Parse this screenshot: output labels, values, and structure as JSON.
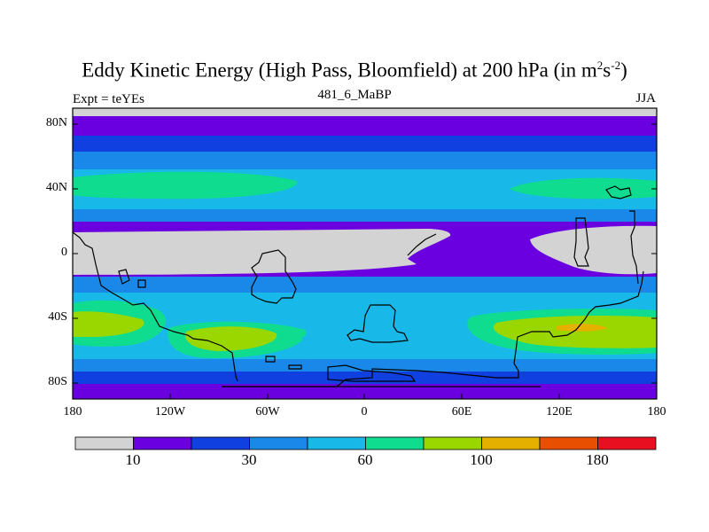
{
  "title": {
    "main": "Eddy Kinetic Energy (High Pass, Bloomfield) at 200 hPa (in m",
    "sup1": "2",
    "mid": "s",
    "sup2": "-2",
    "end": ")"
  },
  "left_label": "Expt = teYEs",
  "center_label": "481_6_MaBP",
  "right_label": "JJA",
  "y_ticks": [
    "80N",
    "40N",
    "0",
    "40S",
    "80S"
  ],
  "x_ticks": [
    "180",
    "120W",
    "60W",
    "0",
    "60E",
    "120E",
    "180"
  ],
  "colorbar": {
    "colors": [
      "#d3d3d3",
      "#6a00e0",
      "#1040e0",
      "#1a88e8",
      "#18b8e8",
      "#10dc90",
      "#9ad600",
      "#e6b000",
      "#e85000",
      "#e81020"
    ],
    "labels": [
      "10",
      "30",
      "60",
      "100",
      "180"
    ]
  }
}
